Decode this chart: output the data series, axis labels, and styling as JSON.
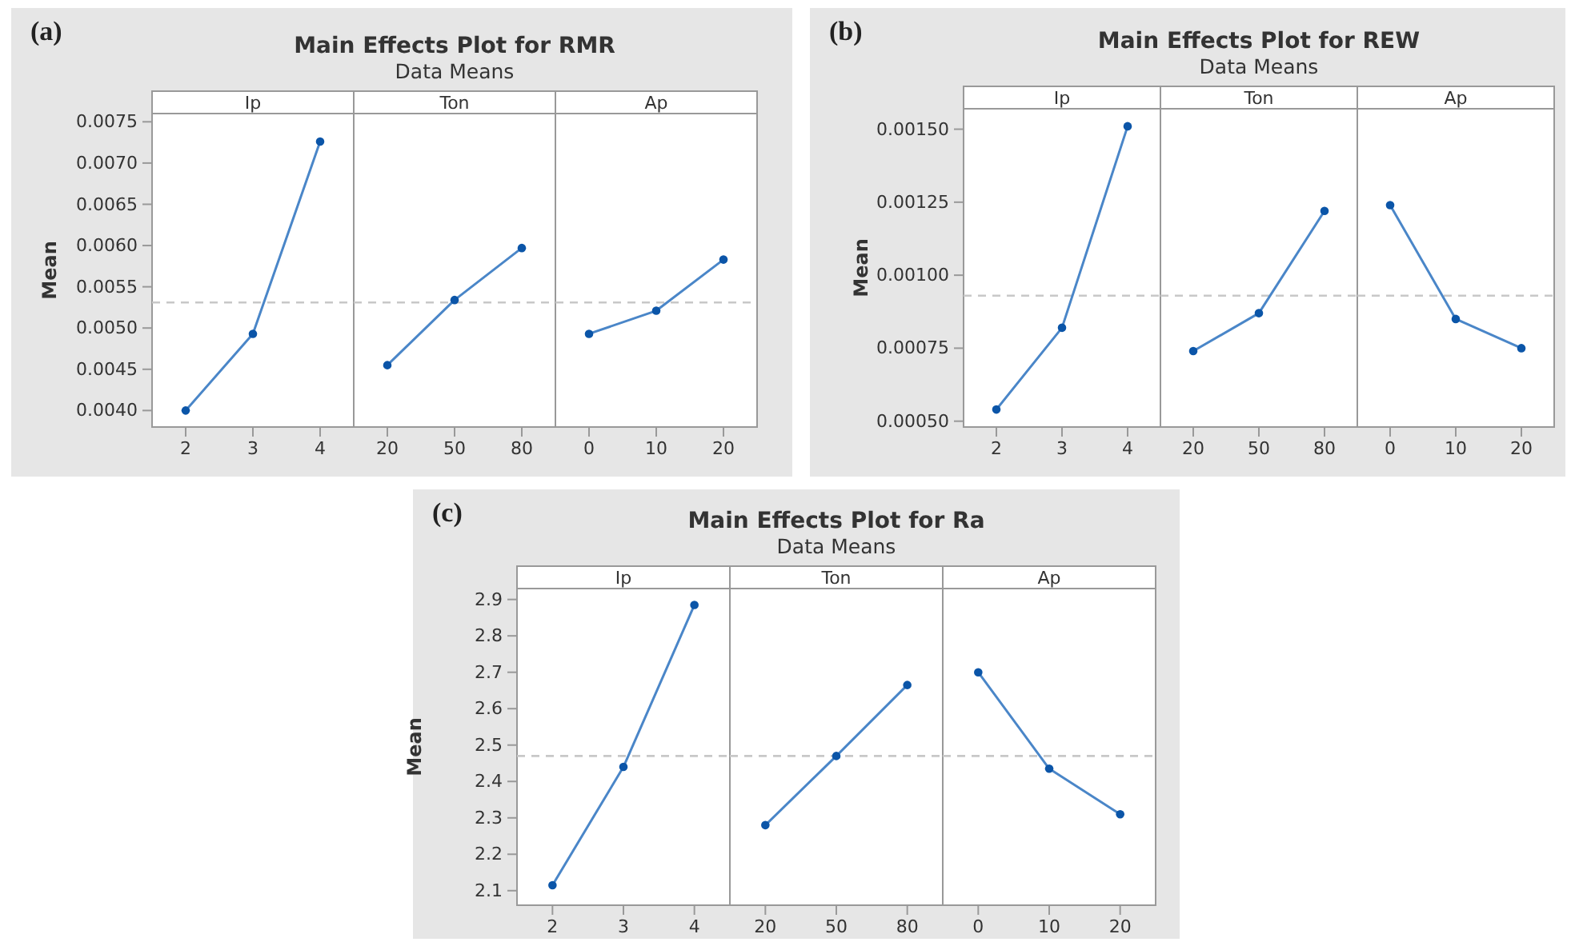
{
  "chart_data": [
    {
      "type": "line",
      "title": "Ip",
      "ylabel": "Mean",
      "annotations": [
        "(a)",
        "Main Effects Plot for RMR",
        "Data Means"
      ],
      "categories": [
        "2",
        "3",
        "4"
      ],
      "series": [
        {
          "color": "#4a86c8",
          "values": [
            0.004,
            0.00493,
            0.00726
          ]
        }
      ],
      "marker": "circle",
      "ylim": [
        0.0038,
        0.0076
      ],
      "yticks": [
        {
          "value": 0.004,
          "label": "0.0040"
        },
        0.0045,
        {
          "value": 0.005,
          "label": "0.0050"
        },
        0.0055,
        {
          "value": 0.006,
          "label": "0.0060"
        },
        0.0065,
        {
          "value": 0.007,
          "label": "0.0070"
        },
        0.0075
      ],
      "ref_lines": [
        {
          "axis": "y",
          "value": 0.00531,
          "color": "#c8c8c8",
          "line_style": "dashed"
        }
      ]
    },
    {
      "type": "line",
      "title": "Ton",
      "categories": [
        "20",
        "50",
        "80"
      ],
      "series": [
        {
          "color": "#4a86c8",
          "values": [
            0.00455,
            0.00534,
            0.00597
          ]
        }
      ],
      "marker": "circle",
      "ylim": [
        0.0038,
        0.0076
      ],
      "tick_labels": "x",
      "ref_lines": [
        {
          "axis": "y",
          "value": 0.00531,
          "color": "#c8c8c8",
          "line_style": "dashed"
        }
      ]
    },
    {
      "type": "line",
      "title": "Ap",
      "categories": [
        "0",
        "10",
        "20"
      ],
      "series": [
        {
          "color": "#4a86c8",
          "values": [
            0.00493,
            0.00521,
            0.00583
          ]
        }
      ],
      "marker": "circle",
      "ylim": [
        0.0038,
        0.0076
      ],
      "tick_labels": "x",
      "ref_lines": [
        {
          "axis": "y",
          "value": 0.00531,
          "color": "#c8c8c8",
          "line_style": "dashed"
        }
      ]
    },
    {
      "type": "line",
      "title": "Ip",
      "ylabel": "Mean",
      "annotations": [
        "(b)",
        "Main Effects Plot for REW",
        "Data Means"
      ],
      "categories": [
        "2",
        "3",
        "4"
      ],
      "series": [
        {
          "color": "#4a86c8",
          "values": [
            0.00054,
            0.00082,
            0.00151
          ]
        }
      ],
      "marker": "circle",
      "ylim": [
        0.00048,
        0.00157
      ],
      "yticks": [
        {
          "value": 0.0005,
          "label": "0.00050"
        },
        {
          "value": 0.00075,
          "label": "0.00075"
        },
        {
          "value": 0.001,
          "label": "0.00100"
        },
        {
          "value": 0.00125,
          "label": "0.00125"
        },
        {
          "value": 0.0015,
          "label": "0.00150"
        }
      ],
      "ref_lines": [
        {
          "axis": "y",
          "value": 0.00093,
          "color": "#c8c8c8",
          "line_style": "dashed"
        }
      ]
    },
    {
      "type": "line",
      "title": "Ton",
      "categories": [
        "20",
        "50",
        "80"
      ],
      "series": [
        {
          "color": "#4a86c8",
          "values": [
            0.00074,
            0.00087,
            0.00122
          ]
        }
      ],
      "marker": "circle",
      "ylim": [
        0.00048,
        0.00157
      ],
      "tick_labels": "x",
      "ref_lines": [
        {
          "axis": "y",
          "value": 0.00093,
          "color": "#c8c8c8",
          "line_style": "dashed"
        }
      ]
    },
    {
      "type": "line",
      "title": "Ap",
      "categories": [
        "0",
        "10",
        "20"
      ],
      "series": [
        {
          "color": "#4a86c8",
          "values": [
            0.00124,
            0.00085,
            0.00075
          ]
        }
      ],
      "marker": "circle",
      "ylim": [
        0.00048,
        0.00157
      ],
      "tick_labels": "x",
      "ref_lines": [
        {
          "axis": "y",
          "value": 0.00093,
          "color": "#c8c8c8",
          "line_style": "dashed"
        }
      ]
    },
    {
      "type": "line",
      "title": "Ip",
      "ylabel": "Mean",
      "annotations": [
        "(c)",
        "Main Effects Plot for Ra",
        "Data Means"
      ],
      "categories": [
        "2",
        "3",
        "4"
      ],
      "series": [
        {
          "color": "#4a86c8",
          "values": [
            2.115,
            2.44,
            2.885
          ]
        }
      ],
      "marker": "circle",
      "ylim": [
        2.06,
        2.93
      ],
      "yticks": [
        2.1,
        2.2,
        2.3,
        2.4,
        2.5,
        2.6,
        2.7,
        2.8,
        2.9
      ],
      "ref_lines": [
        {
          "axis": "y",
          "value": 2.47,
          "color": "#c8c8c8",
          "line_style": "dashed"
        }
      ]
    },
    {
      "type": "line",
      "title": "Ton",
      "categories": [
        "20",
        "50",
        "80"
      ],
      "series": [
        {
          "color": "#4a86c8",
          "values": [
            2.28,
            2.47,
            2.665
          ]
        }
      ],
      "marker": "circle",
      "ylim": [
        2.06,
        2.93
      ],
      "tick_labels": "x",
      "ref_lines": [
        {
          "axis": "y",
          "value": 2.47,
          "color": "#c8c8c8",
          "line_style": "dashed"
        }
      ]
    },
    {
      "type": "line",
      "title": "Ap",
      "categories": [
        "0",
        "10",
        "20"
      ],
      "series": [
        {
          "color": "#4a86c8",
          "values": [
            2.7,
            2.435,
            2.31
          ]
        }
      ],
      "marker": "circle",
      "ylim": [
        2.06,
        2.93
      ],
      "tick_labels": "x",
      "ref_lines": [
        {
          "axis": "y",
          "value": 2.47,
          "color": "#c8c8c8",
          "line_style": "dashed"
        }
      ]
    }
  ]
}
